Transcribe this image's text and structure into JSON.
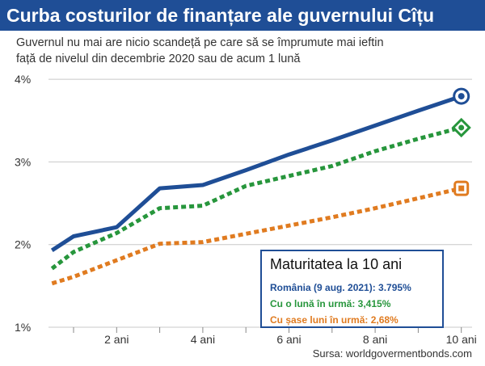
{
  "header": {
    "title": "Curba costurilor de finanțare ale guvernului Cîțu",
    "subtitle_line1": "Guvernul nu mai are nicio scandeță pe care să se împrumute mai ieftin",
    "subtitle_line2": "față de nivelul din decembrie 2020 sau de acum 1 lună"
  },
  "source": "Sursa: worldgovermentbonds.com",
  "legend": {
    "title": "Maturitatea la 10 ani",
    "items": [
      {
        "label": "România (9 aug. 2021): 3.795%",
        "color": "#1f4e96"
      },
      {
        "label": "Cu o lună în urmă: 3,415%",
        "color": "#27963c"
      },
      {
        "label": "Cu șase luni în urmă: 2,68%",
        "color": "#e07b20"
      }
    ]
  },
  "chart_data": {
    "type": "line",
    "title": "Curba costurilor de finanțare ale guvernului Cîțu",
    "xlabel": "",
    "ylabel": "",
    "x_unit": "years",
    "xlim": [
      0.5,
      10.5
    ],
    "ylim": [
      1,
      4.1
    ],
    "x_ticks": [
      1,
      2,
      3,
      4,
      5,
      6,
      7,
      8,
      9,
      10
    ],
    "x_tick_labels": [
      {
        "x": 2,
        "label": "2 ani"
      },
      {
        "x": 4,
        "label": "4 ani"
      },
      {
        "x": 6,
        "label": "6 ani"
      },
      {
        "x": 8,
        "label": "8 ani"
      },
      {
        "x": 10,
        "label": "10 ani"
      }
    ],
    "y_ticks": [
      {
        "y": 1,
        "label": "1%"
      },
      {
        "y": 2,
        "label": "2%"
      },
      {
        "y": 3,
        "label": "3%"
      },
      {
        "y": 4,
        "label": "4%"
      }
    ],
    "grid": true,
    "series": [
      {
        "name": "România (9 aug. 2021)",
        "color": "#1f4e96",
        "style": "solid",
        "marker": "circle-dot",
        "x": [
          0.5,
          1,
          2,
          3,
          4,
          5,
          6,
          7,
          8,
          9,
          10
        ],
        "y": [
          1.93,
          2.1,
          2.21,
          2.68,
          2.72,
          2.9,
          3.09,
          3.26,
          3.44,
          3.62,
          3.795
        ]
      },
      {
        "name": "Cu o lună în urmă",
        "color": "#27963c",
        "style": "dotted",
        "marker": "diamond-dot",
        "x": [
          0.5,
          1,
          2,
          3,
          4,
          5,
          6,
          7,
          8,
          9,
          10
        ],
        "y": [
          1.71,
          1.91,
          2.14,
          2.44,
          2.47,
          2.71,
          2.83,
          2.95,
          3.13,
          3.28,
          3.415
        ]
      },
      {
        "name": "Cu șase luni în urmă",
        "color": "#e07b20",
        "style": "dotted",
        "marker": "square-dot",
        "x": [
          0.5,
          1,
          2,
          3,
          4,
          5,
          6,
          7,
          8,
          9,
          10
        ],
        "y": [
          1.53,
          1.61,
          1.81,
          2.01,
          2.03,
          2.13,
          2.23,
          2.33,
          2.44,
          2.56,
          2.68
        ]
      }
    ]
  }
}
